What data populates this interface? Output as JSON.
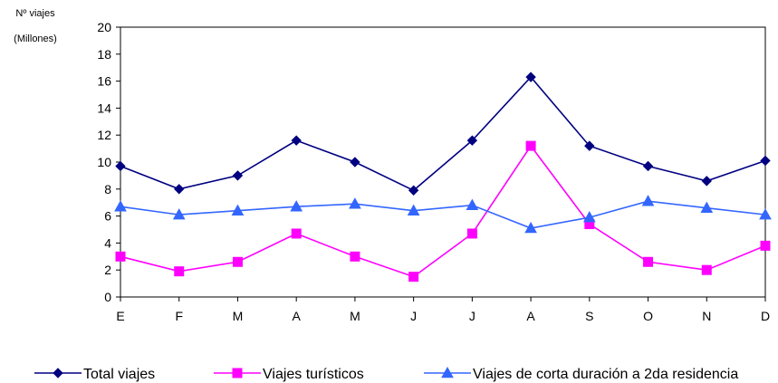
{
  "chart_data": {
    "type": "line",
    "ylabel_line1": "Nº viajes",
    "ylabel_line2": "(Millones)",
    "categories": [
      "E",
      "F",
      "M",
      "A",
      "M",
      "J",
      "J",
      "A",
      "S",
      "O",
      "N",
      "D"
    ],
    "ylim": [
      0,
      20
    ],
    "yticks": [
      0,
      2,
      4,
      6,
      8,
      10,
      12,
      14,
      16,
      18,
      20
    ],
    "grid": false,
    "legend_position": "bottom",
    "series": [
      {
        "name": "Total viajes",
        "color": "#000080",
        "marker": "diamond",
        "values": [
          9.7,
          8.0,
          9.0,
          11.6,
          10.0,
          7.9,
          11.6,
          16.3,
          11.2,
          9.7,
          8.6,
          10.1
        ]
      },
      {
        "name": "Viajes turísticos",
        "color": "#FF00FF",
        "marker": "square",
        "values": [
          3.0,
          1.9,
          2.6,
          4.7,
          3.0,
          1.5,
          4.7,
          11.2,
          5.4,
          2.6,
          2.0,
          3.8
        ]
      },
      {
        "name": "Viajes de corta duración a 2da residencia",
        "color": "#3366FF",
        "marker": "triangle",
        "values": [
          6.7,
          6.1,
          6.4,
          6.7,
          6.9,
          6.4,
          6.8,
          5.1,
          5.9,
          7.1,
          6.6,
          6.1
        ]
      }
    ]
  }
}
